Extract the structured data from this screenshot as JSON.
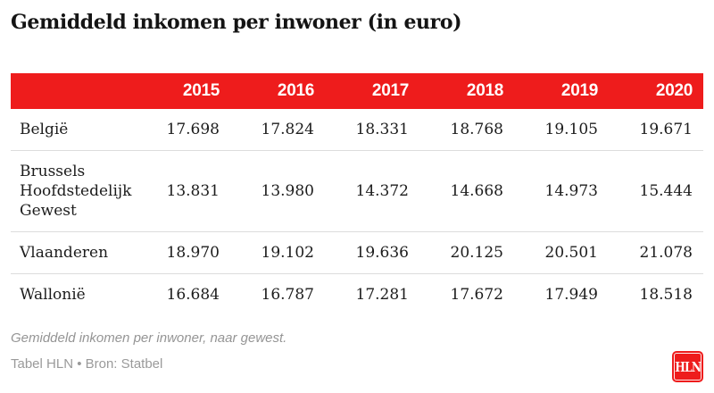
{
  "title": "Gemiddeld inkomen per inwoner (in euro)",
  "table": {
    "columns": [
      "2015",
      "2016",
      "2017",
      "2018",
      "2019",
      "2020"
    ],
    "rows": [
      {
        "label": "België",
        "values": [
          "17.698",
          "17.824",
          "18.331",
          "18.768",
          "19.105",
          "19.671"
        ]
      },
      {
        "label": "Brussels Hoofdstedelijk Gewest",
        "values": [
          "13.831",
          "13.980",
          "14.372",
          "14.668",
          "14.973",
          "15.444"
        ]
      },
      {
        "label": "Vlaanderen",
        "values": [
          "18.970",
          "19.102",
          "19.636",
          "20.125",
          "20.501",
          "21.078"
        ]
      },
      {
        "label": "Wallonië",
        "values": [
          "16.684",
          "16.787",
          "17.281",
          "17.672",
          "17.949",
          "18.518"
        ]
      }
    ]
  },
  "caption": "Gemiddeld inkomen per inwoner, naar gewest.",
  "credit": "Tabel HLN • Bron: Statbel",
  "logo_text": "HLN",
  "colors": {
    "accent_red": "#ee1c1c",
    "header_text": "#ffffff",
    "row_border": "#dcdcdc",
    "muted_gray": "#9a9a9a",
    "body_text": "#1c1c1c"
  },
  "chart_data": {
    "type": "table",
    "title": "Gemiddeld inkomen per inwoner (in euro)",
    "categories": [
      "2015",
      "2016",
      "2017",
      "2018",
      "2019",
      "2020"
    ],
    "series": [
      {
        "name": "België",
        "values": [
          17698,
          17824,
          18331,
          18768,
          19105,
          19671
        ]
      },
      {
        "name": "Brussels Hoofdstedelijk Gewest",
        "values": [
          13831,
          13980,
          14372,
          14668,
          14973,
          15444
        ]
      },
      {
        "name": "Vlaanderen",
        "values": [
          18970,
          19102,
          19636,
          20125,
          20501,
          21078
        ]
      },
      {
        "name": "Wallonië",
        "values": [
          16684,
          16787,
          17281,
          17672,
          17949,
          18518
        ]
      }
    ],
    "caption": "Gemiddeld inkomen per inwoner, naar gewest.",
    "source": "Tabel HLN • Bron: Statbel",
    "layout_hints": {
      "header_background": "#ee1c1c",
      "header_text_color": "#ffffff",
      "grid": "horizontal-row-dividers"
    }
  }
}
